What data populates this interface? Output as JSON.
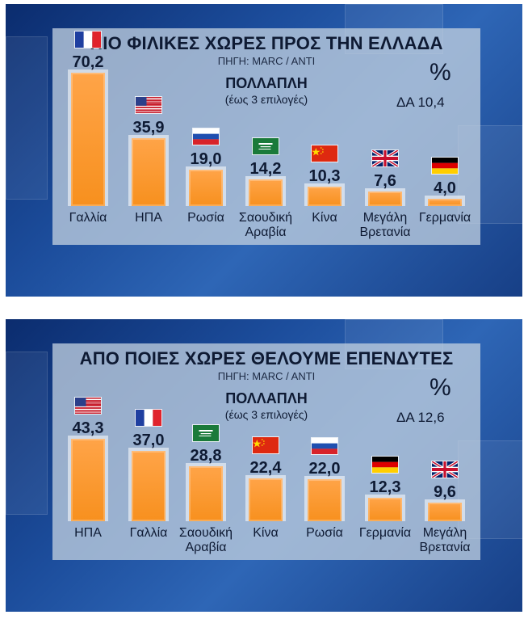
{
  "charts": [
    {
      "title": "ΠΙΟ ΦΙΛΙΚΕΣ ΧΩΡΕΣ ΠΡΟΣ ΤΗΝ ΕΛΛΑΔΑ",
      "source": "ΠΗΓΗ: MARC / ANTI",
      "question_type": "ΠΟΛΛΑΠΛΗ",
      "question_note": "(έως 3 επιλογές)",
      "unit": "%",
      "da": "ΔΑ  10,4"
    },
    {
      "title": "ΑΠΟ ΠΟΙΕΣ ΧΩΡΕΣ ΘΕΛΟΥΜΕ ΕΠΕΝΔΥΤΕΣ",
      "source": "ΠΗΓΗ: MARC / ANTI",
      "question_type": "ΠΟΛΛΑΠΛΗ",
      "question_note": "(έως 3 επιλογές)",
      "unit": "%",
      "da": "ΔΑ  12,6"
    }
  ],
  "chart_data": [
    {
      "type": "bar",
      "title": "ΠΙΟ ΦΙΛΙΚΕΣ ΧΩΡΕΣ ΠΡΟΣ ΤΗΝ ΕΛΛΑΔΑ",
      "categories": [
        "Γαλλία",
        "ΗΠΑ",
        "Ρωσία",
        "Σαουδική\nΑραβία",
        "Κίνα",
        "Μεγάλη\nΒρετανία",
        "Γερμανία"
      ],
      "flags": [
        "france-flag-icon",
        "usa-flag-icon",
        "russia-flag-icon",
        "saudi-flag-icon",
        "china-flag-icon",
        "uk-flag-icon",
        "germany-flag-icon"
      ],
      "values": [
        70.2,
        35.9,
        19.0,
        14.2,
        10.3,
        7.6,
        4.0
      ],
      "labels": [
        "70,2",
        "35,9",
        "19,0",
        "14,2",
        "10,3",
        "7,6",
        "4,0"
      ],
      "bar_color": "#f7901e"
    },
    {
      "type": "bar",
      "title": "ΑΠΟ ΠΟΙΕΣ ΧΩΡΕΣ ΘΕΛΟΥΜΕ ΕΠΕΝΔΥΤΕΣ",
      "categories": [
        "ΗΠΑ",
        "Γαλλία",
        "Σαουδική\nΑραβία",
        "Κίνα",
        "Ρωσία",
        "Γερμανία",
        "Μεγάλη\nΒρετανία"
      ],
      "flags": [
        "usa-flag-icon",
        "france-flag-icon",
        "saudi-flag-icon",
        "china-flag-icon",
        "russia-flag-icon",
        "germany-flag-icon",
        "uk-flag-icon"
      ],
      "values": [
        43.3,
        37.0,
        28.8,
        22.4,
        22.0,
        12.3,
        9.6
      ],
      "labels": [
        "43,3",
        "37,0",
        "28,8",
        "22,4",
        "22,0",
        "12,3",
        "9,6"
      ],
      "bar_color": "#f7901e"
    }
  ]
}
